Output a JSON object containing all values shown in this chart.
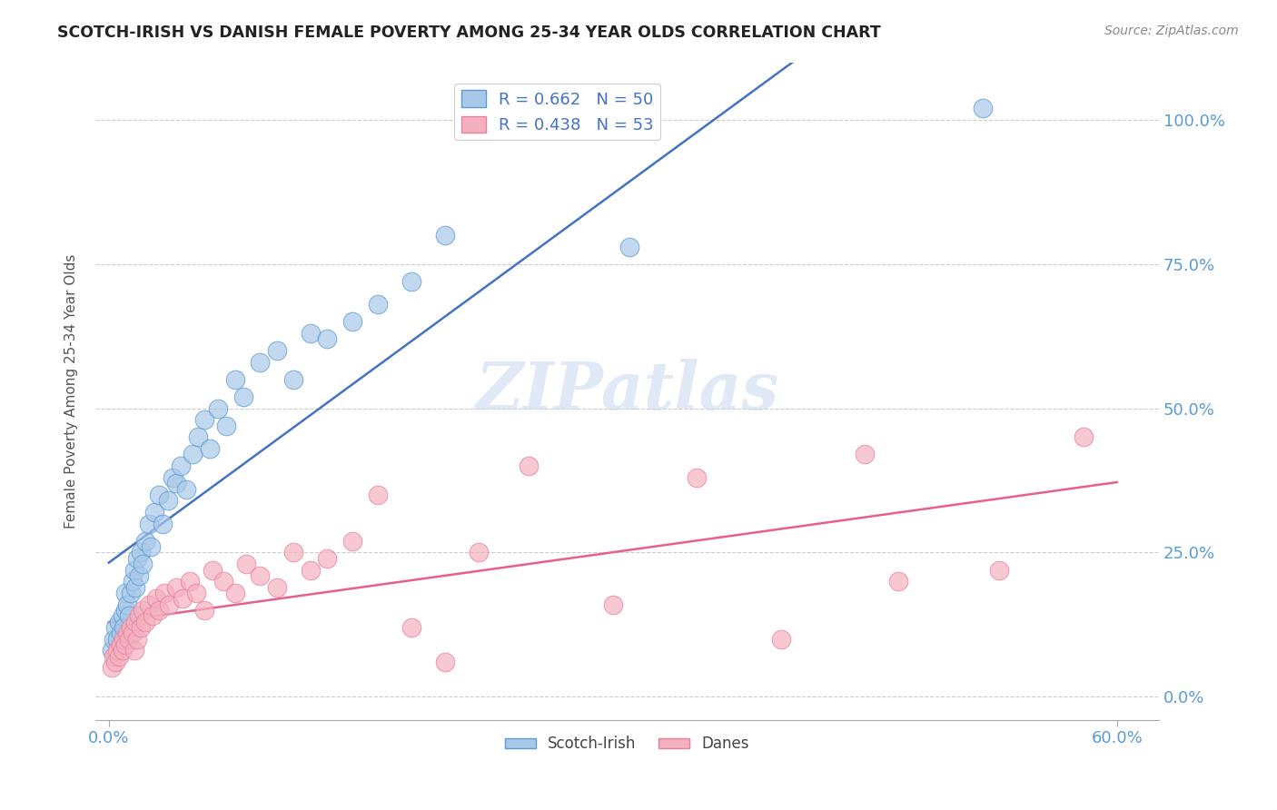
{
  "title": "SCOTCH-IRISH VS DANISH FEMALE POVERTY AMONG 25-34 YEAR OLDS CORRELATION CHART",
  "source": "Source: ZipAtlas.com",
  "ylabel": "Female Poverty Among 25-34 Year Olds",
  "xlim": [
    0.0,
    0.6
  ],
  "ylim": [
    0.0,
    1.05
  ],
  "ytick_labels": [
    "0.0%",
    "25.0%",
    "50.0%",
    "75.0%",
    "100.0%"
  ],
  "ytick_values": [
    0.0,
    0.25,
    0.5,
    0.75,
    1.0
  ],
  "xtick_labels": [
    "0.0%",
    "60.0%"
  ],
  "xtick_values": [
    0.0,
    0.6
  ],
  "watermark_text": "ZIPatlas",
  "blue_color": "#A8C8E8",
  "pink_color": "#F4B0C0",
  "blue_edge_color": "#5B9BD5",
  "pink_edge_color": "#E8829A",
  "blue_line_color": "#4472C4",
  "pink_line_color": "#E8608A",
  "axis_color": "#5B9BD5",
  "title_color": "#222222",
  "source_color": "#888888",
  "ylabel_color": "#555555",
  "watermark_color": "#C8D8EE",
  "legend_label_color": "#4472C4",
  "scotch_irish_x": [
    0.002,
    0.003,
    0.004,
    0.005,
    0.006,
    0.007,
    0.008,
    0.009,
    0.01,
    0.01,
    0.011,
    0.012,
    0.013,
    0.014,
    0.015,
    0.016,
    0.017,
    0.018,
    0.019,
    0.02,
    0.022,
    0.024,
    0.025,
    0.027,
    0.03,
    0.032,
    0.035,
    0.038,
    0.04,
    0.043,
    0.046,
    0.05,
    0.053,
    0.057,
    0.06,
    0.065,
    0.07,
    0.075,
    0.08,
    0.09,
    0.1,
    0.11,
    0.12,
    0.13,
    0.145,
    0.16,
    0.18,
    0.2,
    0.31,
    0.52
  ],
  "scotch_irish_y": [
    0.08,
    0.1,
    0.12,
    0.1,
    0.13,
    0.11,
    0.14,
    0.12,
    0.15,
    0.18,
    0.16,
    0.14,
    0.18,
    0.2,
    0.22,
    0.19,
    0.24,
    0.21,
    0.25,
    0.23,
    0.27,
    0.3,
    0.26,
    0.32,
    0.35,
    0.3,
    0.34,
    0.38,
    0.37,
    0.4,
    0.36,
    0.42,
    0.45,
    0.48,
    0.43,
    0.5,
    0.47,
    0.55,
    0.52,
    0.58,
    0.6,
    0.55,
    0.63,
    0.62,
    0.65,
    0.68,
    0.72,
    0.8,
    0.78,
    1.02
  ],
  "danes_x": [
    0.002,
    0.003,
    0.004,
    0.005,
    0.006,
    0.007,
    0.008,
    0.009,
    0.01,
    0.011,
    0.012,
    0.013,
    0.014,
    0.015,
    0.016,
    0.017,
    0.018,
    0.019,
    0.02,
    0.022,
    0.024,
    0.026,
    0.028,
    0.03,
    0.033,
    0.036,
    0.04,
    0.044,
    0.048,
    0.052,
    0.057,
    0.062,
    0.068,
    0.075,
    0.082,
    0.09,
    0.1,
    0.11,
    0.12,
    0.13,
    0.145,
    0.16,
    0.18,
    0.2,
    0.22,
    0.25,
    0.3,
    0.35,
    0.4,
    0.45,
    0.47,
    0.53,
    0.58
  ],
  "danes_y": [
    0.05,
    0.07,
    0.06,
    0.08,
    0.07,
    0.09,
    0.08,
    0.1,
    0.09,
    0.11,
    0.1,
    0.12,
    0.11,
    0.08,
    0.13,
    0.1,
    0.14,
    0.12,
    0.15,
    0.13,
    0.16,
    0.14,
    0.17,
    0.15,
    0.18,
    0.16,
    0.19,
    0.17,
    0.2,
    0.18,
    0.15,
    0.22,
    0.2,
    0.18,
    0.23,
    0.21,
    0.19,
    0.25,
    0.22,
    0.24,
    0.27,
    0.35,
    0.12,
    0.06,
    0.25,
    0.4,
    0.16,
    0.38,
    0.1,
    0.42,
    0.2,
    0.22,
    0.45
  ]
}
